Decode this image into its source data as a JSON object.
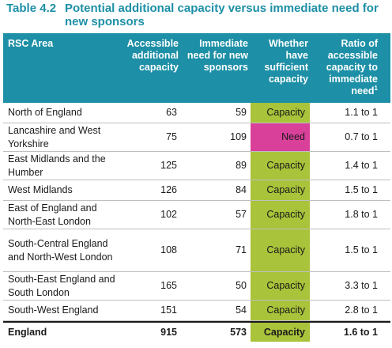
{
  "table": {
    "number": "Table 4.2",
    "title": "Potential additional capacity versus immediate need for new sponsors",
    "headers": {
      "area": "RSC Area",
      "accessible": "Accessible additional capacity",
      "need": "Immediate need for new sponsors",
      "sufficient": "Whether have sufficient capacity",
      "ratio": "Ratio of accessible capacity to immediate need",
      "ratio_footnote": "1"
    },
    "colors": {
      "header_bg": "#1d8fa6",
      "capacity": "#a9c33a",
      "need": "#d8409a"
    },
    "rows": [
      {
        "area": "North of England",
        "accessible": "63",
        "need": "59",
        "sufficient": "Capacity",
        "ratio": "1.1 to 1"
      },
      {
        "area": "Lancashire and West Yorkshire",
        "accessible": "75",
        "need": "109",
        "sufficient": "Need",
        "ratio": "0.7 to 1"
      },
      {
        "area": "East Midlands and the Humber",
        "accessible": "125",
        "need": "89",
        "sufficient": "Capacity",
        "ratio": "1.4 to 1"
      },
      {
        "area": "West Midlands",
        "accessible": "126",
        "need": "84",
        "sufficient": "Capacity",
        "ratio": "1.5 to 1"
      },
      {
        "area": "East of England and North-East London",
        "accessible": "102",
        "need": "57",
        "sufficient": "Capacity",
        "ratio": "1.8 to 1"
      },
      {
        "area": "South-Central England and North-West London",
        "accessible": "108",
        "need": "71",
        "sufficient": "Capacity",
        "ratio": "1.5 to 1"
      },
      {
        "area": "South-East England and South London",
        "accessible": "165",
        "need": "50",
        "sufficient": "Capacity",
        "ratio": "3.3 to 1"
      },
      {
        "area": "South-West England",
        "accessible": "151",
        "need": "54",
        "sufficient": "Capacity",
        "ratio": "2.8 to 1"
      }
    ],
    "total": {
      "area": "England",
      "accessible": "915",
      "need": "573",
      "sufficient": "Capacity",
      "ratio": "1.6 to 1"
    }
  }
}
